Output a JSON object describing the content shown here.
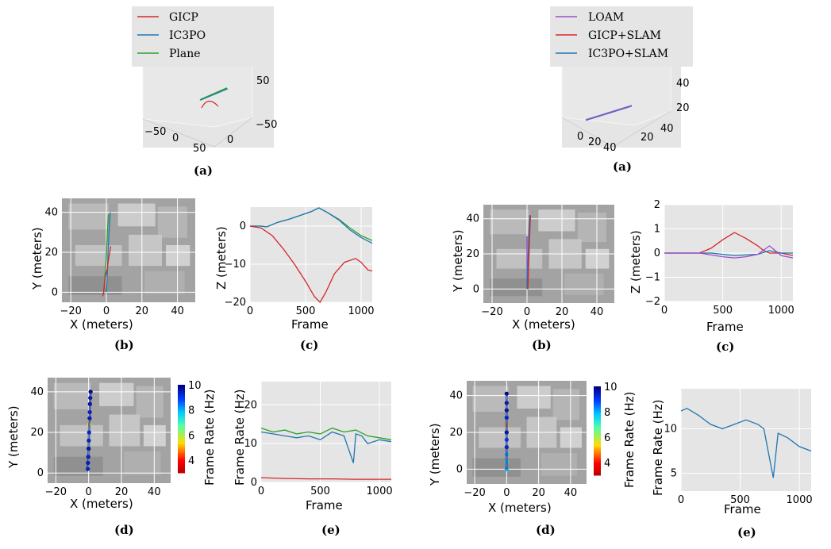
{
  "colors": {
    "gicp": "#d62728",
    "ic3po": "#1f77b4",
    "plane": "#2ca02c",
    "loam": "#9b4dca",
    "panel_bg": "#e5e5e5"
  },
  "captions": {
    "a": "(a)",
    "b": "(b)",
    "c": "(c)",
    "d": "(d)",
    "e": "(e)"
  },
  "legends": {
    "left": [
      "GICP",
      "IC3PO",
      "Plane"
    ],
    "right": [
      "LOAM",
      "GICP+SLAM",
      "IC3PO+SLAM"
    ]
  },
  "labels": {
    "x_meters": "X (meters)",
    "y_meters": "Y (meters)",
    "z_meters": "Z (meters)",
    "frame": "Frame",
    "frame_rate": "Frame Rate (Hz)"
  },
  "chart_data": [
    {
      "id": "left-a",
      "type": "line3d",
      "series": [
        {
          "name": "GICP",
          "color": "gicp"
        },
        {
          "name": "IC3PO",
          "color": "ic3po"
        },
        {
          "name": "Plane",
          "color": "plane"
        }
      ],
      "ticks_front": [
        "−50",
        "0",
        "50"
      ],
      "ticks_right": [
        "0",
        "−50"
      ],
      "ticks_z": [
        "50"
      ]
    },
    {
      "id": "right-a",
      "type": "line3d",
      "series": [
        {
          "name": "LOAM",
          "color": "loam"
        },
        {
          "name": "GICP+SLAM",
          "color": "gicp"
        },
        {
          "name": "IC3PO+SLAM",
          "color": "ic3po"
        }
      ],
      "ticks_front": [
        "0",
        "20",
        "40"
      ],
      "ticks_right": [
        "20",
        "40"
      ],
      "ticks_z": [
        "40",
        "20"
      ]
    },
    {
      "id": "left-b",
      "type": "line",
      "xlabel": "X (meters)",
      "ylabel": "Y (meters)",
      "xlim": [
        -25,
        50
      ],
      "ylim": [
        -5,
        47
      ],
      "xticks": [
        -20,
        0,
        20,
        40
      ],
      "yticks": [
        0,
        20,
        40
      ],
      "series": [
        {
          "name": "IC3PO",
          "color": "ic3po",
          "x": [
            0,
            0.3,
            0.6,
            1,
            1.4,
            1.8,
            2.2
          ],
          "y": [
            0,
            5,
            10,
            20,
            28,
            34,
            40
          ]
        },
        {
          "name": "Plane",
          "color": "plane",
          "x": [
            -1.5,
            -1,
            -0.3,
            0.2,
            0.6,
            1.2
          ],
          "y": [
            0,
            6,
            14,
            22,
            30,
            39
          ]
        },
        {
          "name": "GICP",
          "color": "gicp",
          "x": [
            -2,
            -1.5,
            -1,
            0.5,
            1.5,
            2.5
          ],
          "y": [
            -2,
            0,
            5,
            12,
            18,
            23
          ]
        }
      ]
    },
    {
      "id": "left-c",
      "type": "line",
      "xlabel": "Frame",
      "ylabel": "Z (meters)",
      "xlim": [
        0,
        1100
      ],
      "ylim": [
        -20,
        5
      ],
      "xticks": [
        0,
        500,
        1000
      ],
      "yticks": [
        0,
        -10,
        -20
      ],
      "series": [
        {
          "name": "Plane",
          "color": "plane",
          "x": [
            0,
            100,
            150,
            250,
            350,
            450,
            550,
            620,
            700,
            800,
            900,
            1000,
            1100
          ],
          "y": [
            0,
            0,
            -0.2,
            1,
            1.8,
            2.8,
            3.8,
            4.8,
            3.5,
            1.8,
            -0.5,
            -2.5,
            -3.8
          ]
        },
        {
          "name": "IC3PO",
          "color": "ic3po",
          "x": [
            0,
            100,
            150,
            250,
            350,
            450,
            550,
            620,
            700,
            800,
            900,
            1000,
            1100
          ],
          "y": [
            0,
            0,
            -0.2,
            1,
            1.8,
            2.8,
            3.8,
            4.8,
            3.5,
            1.6,
            -1,
            -3,
            -4.5
          ]
        },
        {
          "name": "GICP",
          "color": "gicp",
          "x": [
            0,
            100,
            200,
            300,
            400,
            500,
            580,
            630,
            680,
            760,
            850,
            950,
            1000,
            1060,
            1100
          ],
          "y": [
            0,
            -0.5,
            -2.5,
            -6,
            -10,
            -14.5,
            -18.5,
            -20,
            -17.5,
            -12.5,
            -9.5,
            -8.5,
            -9.5,
            -11.5,
            -11.8
          ]
        }
      ]
    },
    {
      "id": "left-d",
      "type": "scatter",
      "xlabel": "X (meters)",
      "ylabel": "Y (meters)",
      "xlim": [
        -25,
        50
      ],
      "ylim": [
        -5,
        47
      ],
      "xticks": [
        -20,
        0,
        20,
        40
      ],
      "yticks": [
        0,
        20,
        40
      ],
      "colorbar": {
        "label": "Frame Rate (Hz)",
        "ticks": [
          4,
          6,
          8,
          10
        ],
        "range": [
          3,
          10
        ]
      },
      "series": [
        {
          "name": "IC3PO",
          "x": [
            -0.5,
            -0.4,
            -0.2,
            0,
            0.1,
            0.3,
            0.4,
            0.6,
            0.7,
            0.8,
            1,
            1.2
          ],
          "y": [
            2,
            5,
            8,
            12,
            16,
            20,
            24,
            27,
            30,
            34,
            37,
            40
          ],
          "rate": [
            9.5,
            9.8,
            9.6,
            10,
            9.7,
            9.5,
            5.5,
            9.8,
            9.6,
            10,
            9.9,
            10
          ]
        }
      ]
    },
    {
      "id": "left-e",
      "type": "line",
      "xlabel": "Frame",
      "ylabel": "Frame Rate (Hz)",
      "xlim": [
        0,
        1100
      ],
      "ylim": [
        0,
        26
      ],
      "xticks": [
        0,
        500,
        1000
      ],
      "yticks": [
        0,
        10,
        20
      ],
      "series": [
        {
          "name": "Plane",
          "color": "plane",
          "x": [
            0,
            100,
            200,
            300,
            400,
            500,
            600,
            700,
            800,
            900,
            1000,
            1100
          ],
          "y": [
            14,
            13,
            13.5,
            12.5,
            13,
            12.5,
            14,
            13,
            13.5,
            12,
            11.5,
            11
          ]
        },
        {
          "name": "IC3PO",
          "color": "ic3po",
          "x": [
            0,
            100,
            200,
            300,
            400,
            500,
            600,
            700,
            780,
            800,
            850,
            900,
            1000,
            1100
          ],
          "y": [
            13,
            12.5,
            12,
            11.5,
            12,
            11,
            13,
            12,
            5,
            12.5,
            12,
            10,
            11,
            10.5
          ]
        },
        {
          "name": "GICP",
          "color": "gicp",
          "x": [
            0,
            200,
            400,
            600,
            800,
            1000,
            1100
          ],
          "y": [
            1.2,
            1.0,
            0.9,
            0.9,
            0.8,
            0.8,
            0.8
          ]
        }
      ]
    },
    {
      "id": "right-b",
      "type": "line",
      "xlabel": "X (meters)",
      "ylabel": "Y (meters)",
      "xlim": [
        -25,
        50
      ],
      "ylim": [
        -8,
        48
      ],
      "xticks": [
        -20,
        0,
        20,
        40
      ],
      "yticks": [
        0,
        20,
        40
      ],
      "series": [
        {
          "name": "LOAM",
          "color": "loam",
          "x": [
            0,
            0,
            0,
            0
          ],
          "y": [
            0,
            10,
            20,
            30
          ]
        },
        {
          "name": "IC3PO+SLAM",
          "color": "ic3po",
          "x": [
            0,
            0.5,
            1,
            1.5
          ],
          "y": [
            0,
            15,
            30,
            42
          ]
        },
        {
          "name": "GICP+SLAM",
          "color": "gicp",
          "x": [
            0.5,
            1,
            1.5,
            2
          ],
          "y": [
            0,
            15,
            30,
            42
          ]
        }
      ]
    },
    {
      "id": "right-c",
      "type": "line",
      "xlabel": "Frame",
      "ylabel": "Z (meters)",
      "xlim": [
        0,
        1100
      ],
      "ylim": [
        -2,
        2
      ],
      "xticks": [
        0,
        500,
        1000
      ],
      "yticks": [
        2,
        1,
        0,
        -1,
        -2
      ],
      "series": [
        {
          "name": "GICP+SLAM",
          "color": "gicp",
          "x": [
            0,
            200,
            300,
            400,
            500,
            600,
            700,
            800,
            850,
            900,
            1000,
            1100
          ],
          "y": [
            0,
            0,
            0,
            0.2,
            0.55,
            0.85,
            0.6,
            0.3,
            0.1,
            0,
            0,
            -0.1
          ]
        },
        {
          "name": "IC3PO+SLAM",
          "color": "ic3po",
          "x": [
            0,
            200,
            400,
            600,
            800,
            900,
            1000,
            1100
          ],
          "y": [
            0,
            0,
            0,
            -0.1,
            -0.05,
            0.1,
            0,
            0
          ]
        },
        {
          "name": "LOAM",
          "color": "loam",
          "x": [
            0,
            300,
            500,
            600,
            700,
            800,
            900,
            1000,
            1100
          ],
          "y": [
            0,
            0,
            -0.15,
            -0.2,
            -0.15,
            -0.05,
            0.3,
            -0.1,
            -0.2
          ]
        }
      ]
    },
    {
      "id": "right-d",
      "type": "scatter",
      "xlabel": "X (meters)",
      "ylabel": "Y (meters)",
      "xlim": [
        -25,
        50
      ],
      "ylim": [
        -8,
        48
      ],
      "xticks": [
        -20,
        0,
        20,
        40
      ],
      "yticks": [
        0,
        20,
        40
      ],
      "colorbar": {
        "label": "Frame Rate (Hz)",
        "ticks": [
          4,
          6,
          8,
          10
        ],
        "range": [
          3,
          10
        ]
      },
      "series": [
        {
          "name": "IC3PO+SLAM",
          "x": [
            0,
            0,
            0,
            0,
            0,
            0,
            0,
            0,
            0,
            0,
            0
          ],
          "y": [
            0,
            4,
            8,
            12,
            16,
            20,
            24,
            28,
            32,
            36,
            41
          ],
          "rate": [
            8,
            7.5,
            8,
            9.5,
            9,
            10,
            5,
            9.5,
            10,
            9.8,
            10
          ]
        }
      ]
    },
    {
      "id": "right-e",
      "type": "line",
      "xlabel": "Frame",
      "ylabel": "Frame Rate (Hz)",
      "xlim": [
        0,
        1100
      ],
      "ylim": [
        3,
        14.5
      ],
      "xticks": [
        0,
        500,
        1000
      ],
      "yticks": [
        5,
        10
      ],
      "series": [
        {
          "name": "IC3PO+SLAM",
          "color": "ic3po",
          "x": [
            0,
            50,
            150,
            250,
            350,
            450,
            550,
            650,
            700,
            780,
            820,
            900,
            1000,
            1100
          ],
          "y": [
            12,
            12.3,
            11.5,
            10.5,
            10,
            10.5,
            11,
            10.5,
            10,
            4.5,
            9.5,
            9,
            8,
            7.5
          ]
        }
      ]
    }
  ]
}
